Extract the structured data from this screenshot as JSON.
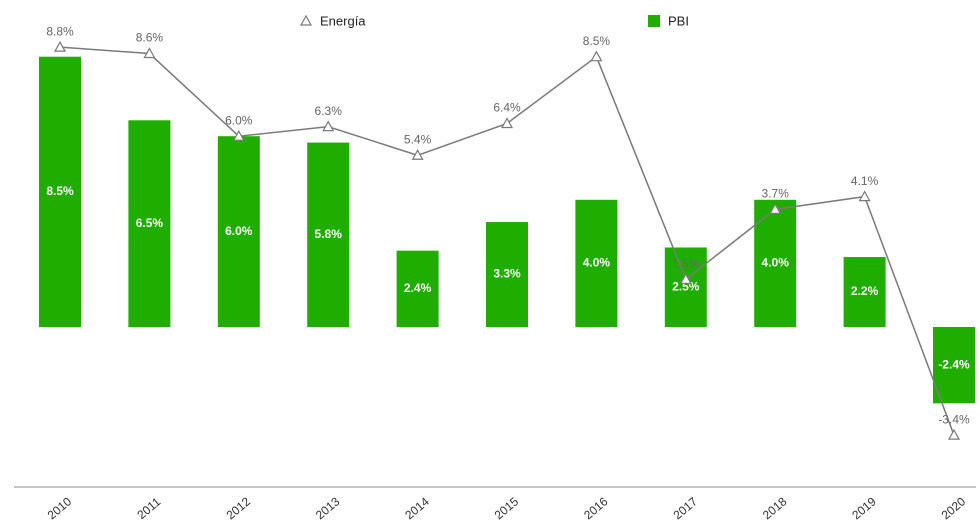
{
  "chart_data": {
    "type": "bar",
    "categories": [
      "2010",
      "2011",
      "2012",
      "2013",
      "2014",
      "2015",
      "2016",
      "2017",
      "2018",
      "2019",
      "2020"
    ],
    "series": [
      {
        "name": "Energía",
        "type": "line",
        "color": "#7a7a7a",
        "values": [
          8.8,
          8.6,
          6.0,
          6.3,
          5.4,
          6.4,
          8.5,
          1.5,
          3.7,
          4.1,
          -3.4
        ],
        "value_labels": [
          "8.8%",
          "8.6%",
          "6.0%",
          "6.3%",
          "5.4%",
          "6.4%",
          "8.5%",
          "1.5%",
          "3.7%",
          "4.1%",
          "-3.4%"
        ]
      },
      {
        "name": "PBI",
        "type": "bar",
        "color": "#1fae00",
        "values": [
          8.5,
          6.5,
          6.0,
          5.8,
          2.4,
          3.3,
          4.0,
          2.5,
          4.0,
          2.2,
          -2.4
        ],
        "value_labels": [
          "8.5%",
          "6.5%",
          "6.0%",
          "5.8%",
          "2.4%",
          "3.3%",
          "4.0%",
          "2.5%",
          "4.0%",
          "2.2%",
          "-2.4%"
        ]
      }
    ]
  }
}
